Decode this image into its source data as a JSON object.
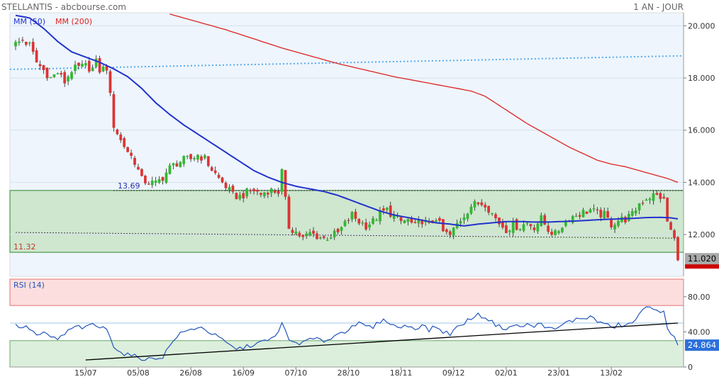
{
  "header": {
    "title": "STELLANTIS - abcbourse.com",
    "period": "1 AN - JOUR"
  },
  "colors": {
    "up": "#33b833",
    "down": "#dd3333",
    "ma50": "#2233cc",
    "ma200": "#dd2222",
    "trend": "#55aaee",
    "rsi": "#2255bb",
    "zone": "#cfe6cf",
    "rsi_high_zone": "#fddede",
    "rsi_low_zone": "#dcefdc",
    "plot_bg": "#eef5fc"
  },
  "chart_data": [
    {
      "type": "candlestick",
      "legend": [
        "MM (50)",
        "MM (200)"
      ],
      "ylim": [
        10.4,
        20.5
      ],
      "yticks": [
        "20.000",
        "18.000",
        "16.000",
        "14.000",
        "12.000"
      ],
      "yticks_values": [
        20,
        18,
        16,
        14,
        12
      ],
      "xtick_labels": [
        "15/07",
        "05/08",
        "26/08",
        "16/09",
        "07/10",
        "28/10",
        "18/11",
        "09/12",
        "02/01",
        "23/01",
        "13/02"
      ],
      "xtick_index": [
        20,
        35,
        50,
        65,
        80,
        95,
        110,
        125,
        140,
        155,
        170
      ],
      "n_bars": 190,
      "annotations": {
        "range_high": 13.69,
        "range_low": 11.32,
        "range_high_label": "13.69",
        "range_low_label": "11.32"
      },
      "last_price": "11.020",
      "last_price_value": 11.02,
      "support_line": {
        "from": [
          0,
          12.08
        ],
        "to": [
          189,
          11.86
        ]
      },
      "trend_line": {
        "from": [
          0,
          18.33
        ],
        "to": [
          189,
          18.85
        ]
      },
      "close_anchors": [
        [
          0,
          19.3
        ],
        [
          2,
          19.45
        ],
        [
          4,
          19.25
        ],
        [
          6,
          18.6
        ],
        [
          8,
          18.3
        ],
        [
          10,
          18.0
        ],
        [
          12,
          18.2
        ],
        [
          14,
          17.85
        ],
        [
          16,
          18.3
        ],
        [
          18,
          18.4
        ],
        [
          20,
          18.45
        ],
        [
          22,
          18.35
        ],
        [
          23,
          18.6
        ],
        [
          24,
          18.3
        ],
        [
          26,
          18.4
        ],
        [
          27,
          17.3
        ],
        [
          28,
          16.2
        ],
        [
          30,
          15.6
        ],
        [
          32,
          15.2
        ],
        [
          34,
          14.8
        ],
        [
          36,
          14.1
        ],
        [
          38,
          14.0
        ],
        [
          40,
          13.95
        ],
        [
          42,
          14.2
        ],
        [
          44,
          14.55
        ],
        [
          46,
          14.75
        ],
        [
          48,
          14.85
        ],
        [
          50,
          14.9
        ],
        [
          52,
          15.05
        ],
        [
          54,
          14.9
        ],
        [
          56,
          14.5
        ],
        [
          58,
          14.15
        ],
        [
          60,
          13.85
        ],
        [
          62,
          13.5
        ],
        [
          64,
          13.45
        ],
        [
          66,
          13.6
        ],
        [
          68,
          13.7
        ],
        [
          70,
          13.55
        ],
        [
          72,
          13.7
        ],
        [
          75,
          13.65
        ],
        [
          76,
          14.4
        ],
        [
          77,
          13.3
        ],
        [
          78,
          12.3
        ],
        [
          80,
          12.1
        ],
        [
          82,
          11.85
        ],
        [
          84,
          12.05
        ],
        [
          86,
          11.95
        ],
        [
          88,
          11.85
        ],
        [
          90,
          11.95
        ],
        [
          92,
          12.05
        ],
        [
          94,
          12.4
        ],
        [
          96,
          12.75
        ],
        [
          98,
          12.5
        ],
        [
          100,
          12.35
        ],
        [
          102,
          12.5
        ],
        [
          104,
          12.8
        ],
        [
          106,
          12.95
        ],
        [
          108,
          12.7
        ],
        [
          110,
          12.5
        ],
        [
          112,
          12.55
        ],
        [
          114,
          12.3
        ],
        [
          116,
          12.55
        ],
        [
          118,
          12.35
        ],
        [
          120,
          12.65
        ],
        [
          122,
          12.1
        ],
        [
          124,
          11.95
        ],
        [
          126,
          12.4
        ],
        [
          128,
          12.75
        ],
        [
          130,
          13.1
        ],
        [
          132,
          13.2
        ],
        [
          134,
          13.2
        ],
        [
          136,
          12.8
        ],
        [
          138,
          12.45
        ],
        [
          140,
          12.2
        ],
        [
          142,
          12.35
        ],
        [
          144,
          12.3
        ],
        [
          146,
          12.45
        ],
        [
          148,
          12.3
        ],
        [
          150,
          12.6
        ],
        [
          152,
          12.2
        ],
        [
          154,
          12.0
        ],
        [
          156,
          12.35
        ],
        [
          158,
          12.65
        ],
        [
          160,
          12.75
        ],
        [
          162,
          12.85
        ],
        [
          164,
          12.95
        ],
        [
          166,
          12.8
        ],
        [
          168,
          12.75
        ],
        [
          170,
          12.4
        ],
        [
          172,
          12.55
        ],
        [
          174,
          12.6
        ],
        [
          176,
          12.75
        ],
        [
          178,
          13.2
        ],
        [
          180,
          13.4
        ],
        [
          182,
          13.5
        ],
        [
          184,
          13.45
        ],
        [
          185,
          13.3
        ],
        [
          186,
          12.5
        ],
        [
          187,
          12.15
        ],
        [
          188,
          11.8
        ],
        [
          189,
          11.02
        ]
      ],
      "ma50": [
        [
          0,
          20.4
        ],
        [
          4,
          20.3
        ],
        [
          8,
          19.9
        ],
        [
          12,
          19.4
        ],
        [
          16,
          19.0
        ],
        [
          20,
          18.8
        ],
        [
          24,
          18.6
        ],
        [
          28,
          18.35
        ],
        [
          32,
          18.05
        ],
        [
          36,
          17.6
        ],
        [
          40,
          17.05
        ],
        [
          44,
          16.6
        ],
        [
          48,
          16.2
        ],
        [
          52,
          15.85
        ],
        [
          56,
          15.5
        ],
        [
          60,
          15.15
        ],
        [
          64,
          14.8
        ],
        [
          68,
          14.45
        ],
        [
          72,
          14.2
        ],
        [
          76,
          14.0
        ],
        [
          80,
          13.85
        ],
        [
          84,
          13.75
        ],
        [
          88,
          13.65
        ],
        [
          92,
          13.5
        ],
        [
          96,
          13.3
        ],
        [
          100,
          13.1
        ],
        [
          104,
          12.9
        ],
        [
          108,
          12.75
        ],
        [
          112,
          12.65
        ],
        [
          116,
          12.55
        ],
        [
          120,
          12.45
        ],
        [
          124,
          12.4
        ],
        [
          128,
          12.33
        ],
        [
          132,
          12.4
        ],
        [
          136,
          12.45
        ],
        [
          140,
          12.5
        ],
        [
          144,
          12.5
        ],
        [
          148,
          12.48
        ],
        [
          152,
          12.48
        ],
        [
          156,
          12.5
        ],
        [
          160,
          12.52
        ],
        [
          164,
          12.55
        ],
        [
          168,
          12.58
        ],
        [
          172,
          12.6
        ],
        [
          176,
          12.62
        ],
        [
          180,
          12.65
        ],
        [
          184,
          12.66
        ],
        [
          187,
          12.64
        ],
        [
          189,
          12.6
        ]
      ],
      "ma200": [
        [
          44,
          20.45
        ],
        [
          52,
          20.15
        ],
        [
          60,
          19.85
        ],
        [
          68,
          19.5
        ],
        [
          76,
          19.15
        ],
        [
          84,
          18.85
        ],
        [
          92,
          18.55
        ],
        [
          100,
          18.3
        ],
        [
          108,
          18.05
        ],
        [
          116,
          17.85
        ],
        [
          124,
          17.65
        ],
        [
          130,
          17.5
        ],
        [
          134,
          17.3
        ],
        [
          138,
          16.95
        ],
        [
          142,
          16.6
        ],
        [
          146,
          16.25
        ],
        [
          150,
          15.95
        ],
        [
          154,
          15.65
        ],
        [
          158,
          15.35
        ],
        [
          162,
          15.1
        ],
        [
          166,
          14.85
        ],
        [
          170,
          14.7
        ],
        [
          174,
          14.6
        ],
        [
          178,
          14.45
        ],
        [
          182,
          14.3
        ],
        [
          186,
          14.15
        ],
        [
          189,
          14.0
        ]
      ]
    },
    {
      "type": "line",
      "series": [
        {
          "name": "RSI (14)"
        }
      ],
      "ylim": [
        0,
        100
      ],
      "yticks": [
        "80.00",
        "40.00",
        "0"
      ],
      "yticks_values": [
        80,
        40,
        0
      ],
      "overbought": 70,
      "oversold": 30,
      "mid_line": 50,
      "last_value": "24.864",
      "last_value_num": 24.864,
      "trend_line": {
        "from": [
          20,
          8
        ],
        "to": [
          189,
          50
        ]
      },
      "values_anchors": [
        [
          0,
          47
        ],
        [
          4,
          44
        ],
        [
          6,
          36
        ],
        [
          8,
          38
        ],
        [
          10,
          34
        ],
        [
          12,
          32
        ],
        [
          14,
          37
        ],
        [
          16,
          44
        ],
        [
          18,
          46
        ],
        [
          20,
          44
        ],
        [
          22,
          49
        ],
        [
          24,
          45
        ],
        [
          26,
          43
        ],
        [
          27,
          36
        ],
        [
          28,
          24
        ],
        [
          30,
          16
        ],
        [
          32,
          14
        ],
        [
          34,
          12
        ],
        [
          36,
          10
        ],
        [
          38,
          9
        ],
        [
          40,
          10
        ],
        [
          42,
          12
        ],
        [
          44,
          24
        ],
        [
          46,
          35
        ],
        [
          48,
          40
        ],
        [
          50,
          42
        ],
        [
          52,
          46
        ],
        [
          54,
          43
        ],
        [
          56,
          38
        ],
        [
          58,
          33
        ],
        [
          60,
          28
        ],
        [
          62,
          22
        ],
        [
          64,
          21
        ],
        [
          66,
          23
        ],
        [
          68,
          26
        ],
        [
          70,
          28
        ],
        [
          72,
          30
        ],
        [
          74,
          34
        ],
        [
          76,
          50
        ],
        [
          77,
          40
        ],
        [
          78,
          30
        ],
        [
          80,
          28
        ],
        [
          82,
          27
        ],
        [
          84,
          32
        ],
        [
          86,
          31
        ],
        [
          88,
          30
        ],
        [
          90,
          33
        ],
        [
          92,
          38
        ],
        [
          94,
          40
        ],
        [
          96,
          48
        ],
        [
          98,
          49
        ],
        [
          100,
          46
        ],
        [
          102,
          45
        ],
        [
          104,
          52
        ],
        [
          106,
          53
        ],
        [
          108,
          47
        ],
        [
          110,
          45
        ],
        [
          112,
          47
        ],
        [
          114,
          44
        ],
        [
          116,
          48
        ],
        [
          118,
          42
        ],
        [
          120,
          46
        ],
        [
          122,
          40
        ],
        [
          124,
          38
        ],
        [
          126,
          45
        ],
        [
          128,
          50
        ],
        [
          130,
          56
        ],
        [
          132,
          59
        ],
        [
          134,
          57
        ],
        [
          136,
          51
        ],
        [
          138,
          46
        ],
        [
          140,
          44
        ],
        [
          142,
          47
        ],
        [
          144,
          46
        ],
        [
          146,
          48
        ],
        [
          148,
          46
        ],
        [
          150,
          50
        ],
        [
          152,
          44
        ],
        [
          154,
          42
        ],
        [
          156,
          48
        ],
        [
          158,
          52
        ],
        [
          160,
          54
        ],
        [
          162,
          56
        ],
        [
          164,
          57
        ],
        [
          166,
          52
        ],
        [
          168,
          50
        ],
        [
          170,
          44
        ],
        [
          172,
          48
        ],
        [
          174,
          47
        ],
        [
          176,
          50
        ],
        [
          178,
          60
        ],
        [
          180,
          67
        ],
        [
          182,
          68
        ],
        [
          184,
          64
        ],
        [
          185,
          62
        ],
        [
          186,
          42
        ],
        [
          187,
          36
        ],
        [
          188,
          33
        ],
        [
          189,
          24.864
        ]
      ]
    }
  ]
}
